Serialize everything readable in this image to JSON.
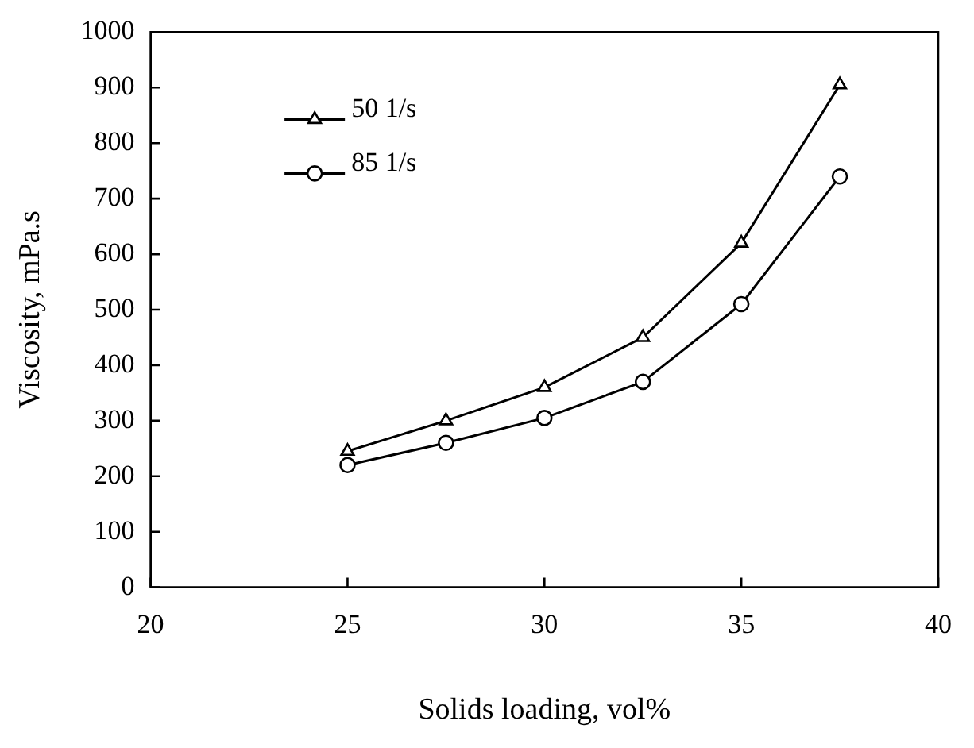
{
  "chart_data": {
    "type": "line",
    "xlabel": "Solids loading, vol%",
    "ylabel": "Viscosity, mPa.s",
    "x": [
      25,
      27.5,
      30,
      32.5,
      35,
      37.5
    ],
    "series": [
      {
        "name": "50 1/s",
        "color": "#000000",
        "marker": "triangle",
        "values": [
          245,
          300,
          360,
          450,
          620,
          905
        ]
      },
      {
        "name": "85 1/s",
        "color": "#000000",
        "marker": "circle",
        "values": [
          220,
          260,
          305,
          370,
          510,
          740
        ]
      }
    ],
    "xlim": [
      20,
      40
    ],
    "xticks": [
      20,
      25,
      30,
      35,
      40
    ],
    "ylim": [
      0,
      1000
    ],
    "yticks": [
      0,
      100,
      200,
      300,
      400,
      500,
      600,
      700,
      800,
      900,
      1000
    ],
    "grid": false,
    "legend": "top left",
    "line_style": "solid"
  }
}
